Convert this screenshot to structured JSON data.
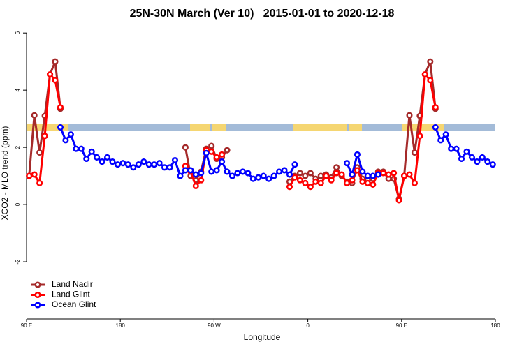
{
  "chart_data": {
    "type": "line",
    "title": "25N-30N March (Ver 10)   2015-01-01 to 2020-12-18",
    "xlabel": "Longitude",
    "ylabel": "XCO2 - MLO trend (ppm)",
    "x": [
      92.5,
      97.5,
      102.5,
      107.5,
      112.5,
      117.5,
      122.5,
      127.5,
      132.5,
      137.5,
      142.5,
      147.5,
      152.5,
      157.5,
      162.5,
      167.5,
      172.5,
      177.5,
      182.5,
      187.5,
      192.5,
      197.5,
      202.5,
      207.5,
      212.5,
      217.5,
      222.5,
      227.5,
      232.5,
      237.5,
      242.5,
      247.5,
      252.5,
      257.5,
      262.5,
      267.5,
      272.5,
      277.5,
      282.5,
      287.5,
      292.5,
      297.5,
      302.5,
      307.5,
      312.5,
      317.5,
      322.5,
      327.5,
      332.5,
      337.5,
      342.5,
      347.5,
      352.5,
      357.5,
      362.5,
      367.5,
      372.5,
      377.5,
      382.5,
      387.5,
      392.5,
      397.5,
      402.5,
      407.5,
      412.5,
      417.5,
      422.5,
      427.5,
      432.5,
      437.5,
      442.5,
      447.5,
      452.5,
      457.5,
      462.5,
      467.5,
      472.5,
      477.5,
      482.5,
      487.5,
      492.5,
      497.5,
      502.5,
      507.5,
      512.5,
      517.5,
      522.5,
      527.5,
      532.5,
      537.5
    ],
    "series": [
      {
        "name": "Land Nadir",
        "color": "#a52a2a",
        "values": [
          1.0,
          3.12,
          1.82,
          3.1,
          4.55,
          5.0,
          3.35,
          null,
          null,
          null,
          null,
          null,
          null,
          null,
          null,
          null,
          null,
          null,
          null,
          null,
          null,
          null,
          null,
          null,
          null,
          null,
          null,
          null,
          null,
          null,
          2.0,
          1.0,
          0.85,
          1.15,
          1.95,
          2.05,
          1.6,
          1.65,
          1.9,
          null,
          null,
          null,
          null,
          null,
          null,
          null,
          null,
          null,
          null,
          null,
          0.8,
          1.0,
          1.1,
          1.0,
          1.1,
          0.9,
          1.0,
          1.05,
          0.95,
          1.3,
          1.0,
          0.8,
          0.75,
          1.3,
          0.9,
          0.85,
          0.9,
          1.15,
          1.15,
          0.9,
          0.9,
          0.2,
          1.0,
          3.12,
          1.82,
          3.1,
          4.55,
          5.0,
          3.35,
          null,
          null,
          null,
          null,
          null,
          null,
          null,
          null,
          null,
          null,
          null
        ]
      },
      {
        "name": "Land Glint",
        "color": "#ff0000",
        "values": [
          1.0,
          1.05,
          0.75,
          2.4,
          4.55,
          4.35,
          3.4,
          null,
          null,
          null,
          null,
          null,
          null,
          null,
          null,
          null,
          null,
          null,
          null,
          null,
          null,
          null,
          null,
          null,
          null,
          null,
          null,
          null,
          null,
          null,
          1.35,
          1.15,
          0.65,
          0.85,
          1.9,
          1.85,
          1.65,
          1.75,
          null,
          null,
          null,
          null,
          null,
          null,
          null,
          null,
          null,
          null,
          null,
          null,
          0.62,
          0.95,
          0.85,
          0.75,
          0.62,
          0.8,
          0.75,
          1.0,
          0.85,
          1.1,
          1.05,
          0.75,
          0.85,
          1.2,
          0.8,
          0.75,
          0.7,
          1.1,
          1.1,
          1.05,
          1.1,
          0.15,
          1.0,
          1.05,
          0.75,
          2.4,
          4.55,
          4.35,
          3.4,
          null,
          null,
          null,
          null,
          null,
          null,
          null,
          null,
          null,
          null,
          null
        ]
      },
      {
        "name": "Ocean Glint",
        "color": "#0000ff",
        "values": [
          null,
          null,
          null,
          null,
          null,
          null,
          2.7,
          2.25,
          2.45,
          1.95,
          1.95,
          1.6,
          1.85,
          1.65,
          1.5,
          1.65,
          1.5,
          1.4,
          1.45,
          1.4,
          1.3,
          1.4,
          1.5,
          1.4,
          1.4,
          1.45,
          1.3,
          1.3,
          1.55,
          1.0,
          1.2,
          1.2,
          1.05,
          1.1,
          1.8,
          1.15,
          1.2,
          1.5,
          1.15,
          1.0,
          1.1,
          1.15,
          1.1,
          0.9,
          0.95,
          1.0,
          0.9,
          1.0,
          1.15,
          1.2,
          1.05,
          1.4,
          null,
          null,
          null,
          null,
          null,
          null,
          null,
          null,
          null,
          1.45,
          1.05,
          1.75,
          1.15,
          1.0,
          1.0,
          1.05,
          null,
          null,
          null,
          null,
          null,
          null,
          null,
          null,
          null,
          null,
          2.7,
          2.25,
          2.45,
          1.95,
          1.95,
          1.6,
          1.85,
          1.65,
          1.5,
          1.65,
          1.5,
          1.4
        ]
      }
    ],
    "xlim": [
      90,
      540
    ],
    "xticks": [
      {
        "value": 90,
        "label": "90 E"
      },
      180,
      {
        "value": 270,
        "label": "90 W"
      },
      {
        "value": 360,
        "label": "0"
      },
      {
        "value": 450,
        "label": "90 E"
      },
      {
        "value": 540,
        "label": "180"
      }
    ],
    "ylim": [
      -4.0,
      6.2
    ],
    "yticks": [
      -2,
      0,
      2,
      4,
      6
    ],
    "legend": "bottom-left"
  }
}
